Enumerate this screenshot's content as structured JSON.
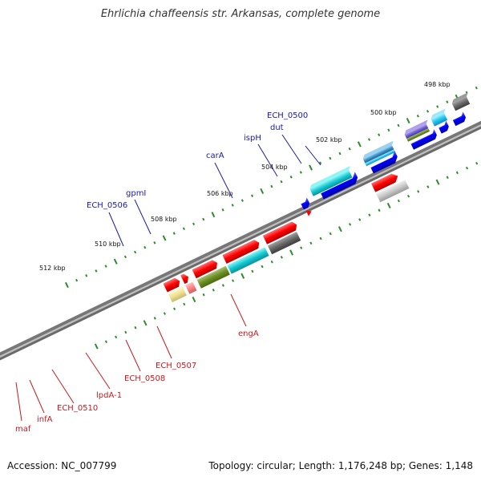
{
  "title": "Ehrlichia chaffeensis str. Arkansas, complete genome",
  "footer": {
    "accession": "Accession: NC_007799",
    "summary": "Topology: circular; Length: 1,176,248 bp; Genes: 1,148"
  },
  "colors": {
    "backbone": "#777777",
    "forward_label": "#1a1aa6",
    "reverse_label": "#c8181e",
    "tick": "#2e8b2e"
  },
  "scale": [
    {
      "label": "498 kbp"
    },
    {
      "label": "500 kbp"
    },
    {
      "label": "502 kbp"
    },
    {
      "label": "504 kbp"
    },
    {
      "label": "506 kbp"
    },
    {
      "label": "508 kbp"
    },
    {
      "label": "510 kbp"
    },
    {
      "label": "512 kbp"
    }
  ],
  "gene_labels": {
    "forward": [
      "ECH_0500",
      "dut",
      "ispH",
      "carA",
      "gpmI",
      "ECH_0506"
    ],
    "reverse": [
      "engA",
      "ECH_0507",
      "ECH_0508",
      "lpdA-1",
      "ECH_0510",
      "infA",
      "maf"
    ]
  }
}
